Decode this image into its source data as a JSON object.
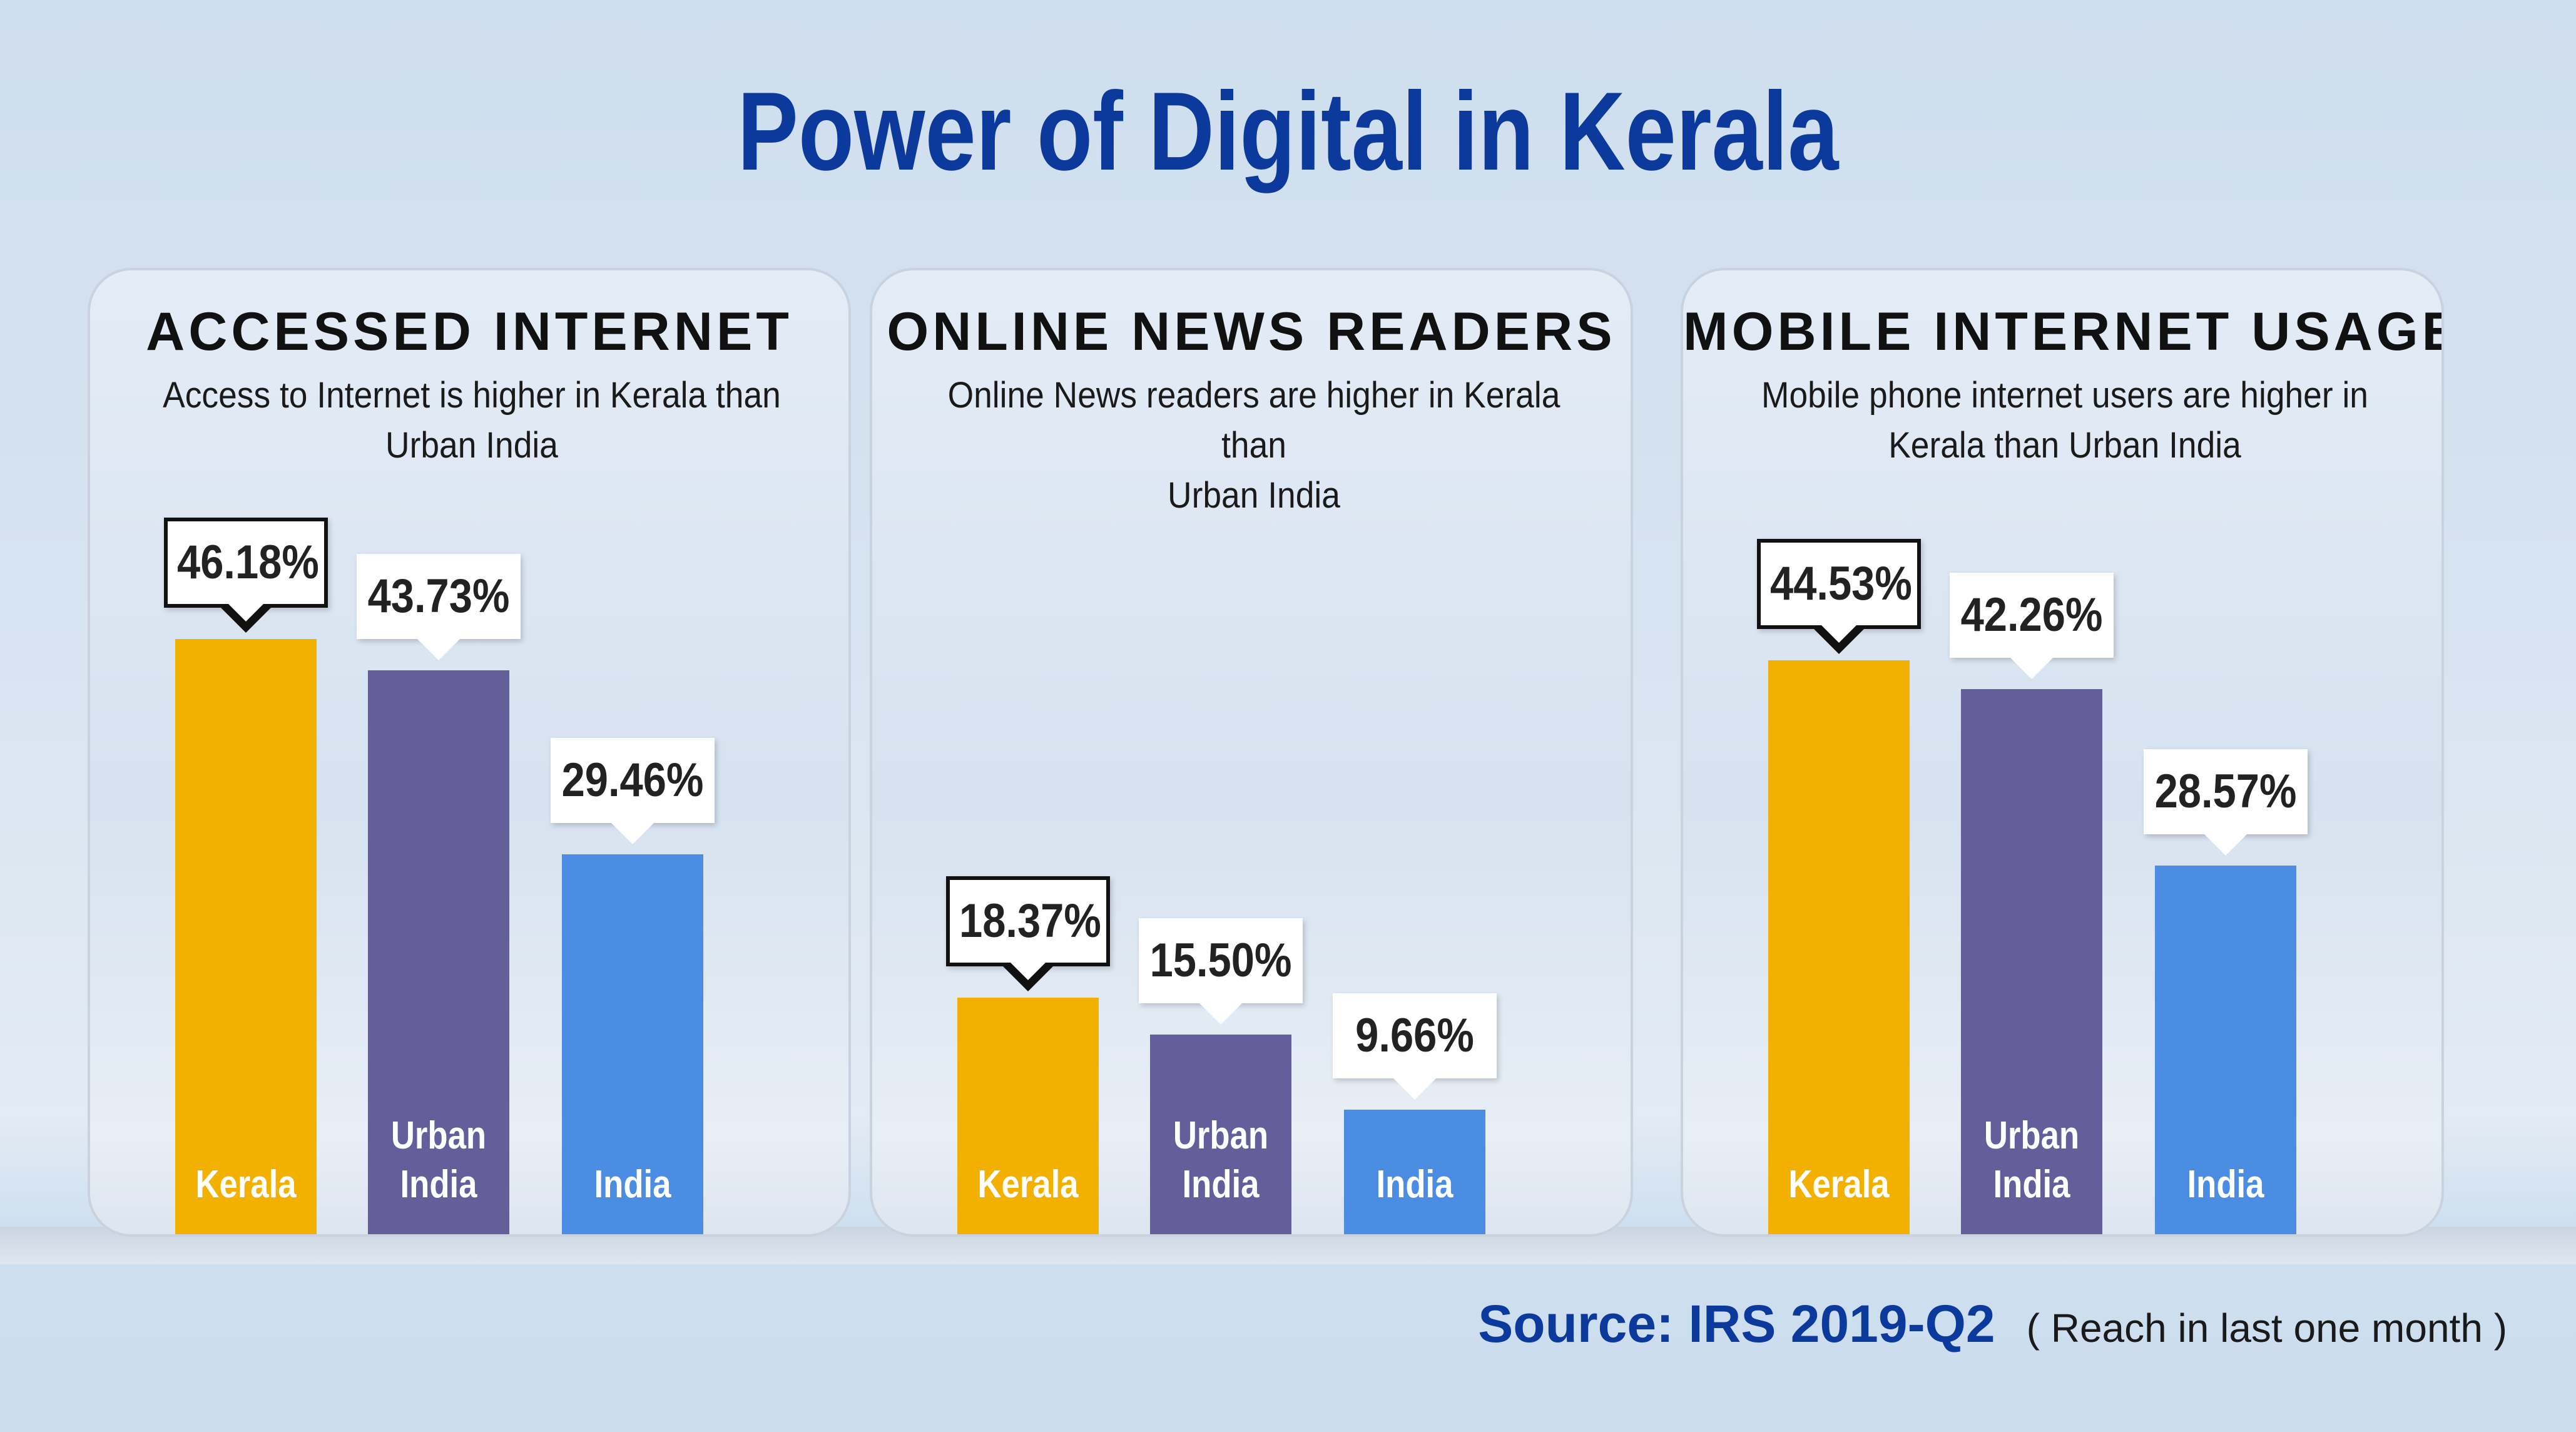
{
  "title": "Power of Digital in Kerala",
  "colors": {
    "title": "#0b3a9c",
    "kerala": "#f2b100",
    "urban_india": "#645e9a",
    "india": "#4a8de3"
  },
  "chart_data": [
    {
      "type": "bar",
      "title": "ACCESSED INTERNET",
      "subtitle_lines": [
        "Access to Internet is higher in Kerala than",
        "Urban India"
      ],
      "categories": [
        "Kerala",
        "Urban India",
        "India"
      ],
      "category_lines": [
        [
          "Kerala"
        ],
        [
          "Urban",
          "India"
        ],
        [
          "India"
        ]
      ],
      "values": [
        46.18,
        43.73,
        29.46
      ],
      "value_labels": [
        "46.18%",
        "43.73%",
        "29.46%"
      ],
      "highlight_index": 0,
      "grid": false
    },
    {
      "type": "bar",
      "title": "ONLINE NEWS READERS",
      "subtitle_lines": [
        "Online News readers are higher in Kerala than",
        "Urban India"
      ],
      "categories": [
        "Kerala",
        "Urban India",
        "India"
      ],
      "category_lines": [
        [
          "Kerala"
        ],
        [
          "Urban",
          "India"
        ],
        [
          "India"
        ]
      ],
      "values": [
        18.37,
        15.5,
        9.66
      ],
      "value_labels": [
        "18.37%",
        "15.50%",
        "9.66%"
      ],
      "highlight_index": 0,
      "grid": false
    },
    {
      "type": "bar",
      "title": "MOBILE INTERNET USAGE",
      "subtitle_lines": [
        "Mobile phone internet users are higher in",
        "Kerala than Urban India"
      ],
      "categories": [
        "Kerala",
        "Urban India",
        "India"
      ],
      "category_lines": [
        [
          "Kerala"
        ],
        [
          "Urban",
          "India"
        ],
        [
          "India"
        ]
      ],
      "values": [
        44.53,
        42.26,
        28.57
      ],
      "value_labels": [
        "44.53%",
        "42.26%",
        "28.57%"
      ],
      "highlight_index": 0,
      "grid": false
    }
  ],
  "source": {
    "label": "Source: IRS 2019-Q2",
    "note": "( Reach in last one month )"
  }
}
